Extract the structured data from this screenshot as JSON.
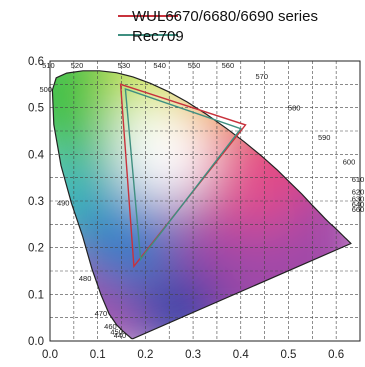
{
  "chart_data": {
    "type": "chromaticity-diagram",
    "xlim": [
      0.0,
      0.65
    ],
    "ylim": [
      0.0,
      0.6
    ],
    "x_ticks": [
      "0.0",
      "0.1",
      "0.2",
      "0.3",
      "0.4",
      "0.5",
      "0.6"
    ],
    "y_ticks": [
      "0.0",
      "0.1",
      "0.2",
      "0.3",
      "0.4",
      "0.5",
      "0.6"
    ],
    "grid": true,
    "legend_placement": "top",
    "series": [
      {
        "name": "WUL6670/6680/6690 series",
        "color": "#c8323c",
        "points": [
          [
            0.148,
            0.55
          ],
          [
            0.41,
            0.463
          ],
          [
            0.176,
            0.16
          ]
        ]
      },
      {
        "name": "Rec709",
        "color": "#3f8f80",
        "points": [
          [
            0.158,
            0.54
          ],
          [
            0.4,
            0.455
          ],
          [
            0.19,
            0.175
          ]
        ]
      }
    ],
    "spectral_locus": [
      [
        0.174,
        0.005
      ],
      [
        0.174,
        0.005
      ],
      [
        0.174,
        0.005
      ],
      [
        0.174,
        0.005
      ],
      [
        0.174,
        0.005
      ],
      [
        0.174,
        0.005
      ],
      [
        0.173,
        0.005
      ],
      [
        0.173,
        0.005
      ],
      [
        0.172,
        0.005
      ],
      [
        0.17,
        0.006
      ],
      [
        0.167,
        0.009
      ],
      [
        0.161,
        0.014
      ],
      [
        0.153,
        0.021
      ],
      [
        0.14,
        0.034
      ],
      [
        0.124,
        0.058
      ],
      [
        0.107,
        0.099
      ],
      [
        0.088,
        0.154
      ],
      [
        0.068,
        0.226
      ],
      [
        0.045,
        0.295
      ],
      [
        0.023,
        0.376
      ],
      [
        0.008,
        0.464
      ],
      [
        0.005,
        0.538
      ],
      [
        0.013,
        0.564
      ],
      [
        0.035,
        0.574
      ],
      [
        0.069,
        0.579
      ],
      [
        0.104,
        0.579
      ],
      [
        0.139,
        0.575
      ],
      [
        0.174,
        0.566
      ],
      [
        0.211,
        0.552
      ],
      [
        0.249,
        0.534
      ],
      [
        0.288,
        0.512
      ],
      [
        0.328,
        0.486
      ],
      [
        0.368,
        0.457
      ],
      [
        0.407,
        0.427
      ],
      [
        0.444,
        0.396
      ],
      [
        0.477,
        0.366
      ],
      [
        0.505,
        0.338
      ],
      [
        0.528,
        0.315
      ],
      [
        0.548,
        0.293
      ],
      [
        0.564,
        0.276
      ],
      [
        0.577,
        0.262
      ],
      [
        0.587,
        0.252
      ],
      [
        0.596,
        0.244
      ],
      [
        0.603,
        0.237
      ],
      [
        0.609,
        0.231
      ],
      [
        0.614,
        0.226
      ],
      [
        0.618,
        0.222
      ],
      [
        0.621,
        0.219
      ],
      [
        0.623,
        0.217
      ],
      [
        0.625,
        0.215
      ],
      [
        0.626,
        0.214
      ],
      [
        0.627,
        0.213
      ],
      [
        0.628,
        0.212
      ],
      [
        0.629,
        0.211
      ],
      [
        0.63,
        0.21
      ],
      [
        0.631,
        0.209
      ]
    ],
    "wavelength_labels": [
      {
        "text": "440",
        "at": [
          0.164,
          0.011
        ],
        "dir": "left"
      },
      {
        "text": "450",
        "at": [
          0.157,
          0.018
        ],
        "dir": "left"
      },
      {
        "text": "460",
        "at": [
          0.144,
          0.03
        ],
        "dir": "left"
      },
      {
        "text": "470",
        "at": [
          0.124,
          0.058
        ],
        "dir": "left"
      },
      {
        "text": "480",
        "at": [
          0.091,
          0.133
        ],
        "dir": "left"
      },
      {
        "text": "490",
        "at": [
          0.045,
          0.295
        ],
        "dir": "left"
      },
      {
        "text": "500",
        "at": [
          0.008,
          0.538
        ],
        "dir": "left"
      },
      {
        "text": "510",
        "at": [
          0.014,
          0.75
        ],
        "dir": "left"
      },
      {
        "text": "520",
        "at": [
          0.074,
          0.834
        ],
        "dir": "left"
      },
      {
        "text": "530",
        "at": [
          0.155,
          0.806
        ],
        "dir": "up"
      },
      {
        "text": "540",
        "at": [
          0.23,
          0.754
        ],
        "dir": "up"
      },
      {
        "text": "550",
        "at": [
          0.302,
          0.692
        ],
        "dir": "up"
      },
      {
        "text": "560",
        "at": [
          0.373,
          0.624
        ],
        "dir": "up"
      },
      {
        "text": "570",
        "at": [
          0.444,
          0.555
        ],
        "dir": "up"
      },
      {
        "text": "580",
        "at": [
          0.512,
          0.487
        ],
        "dir": "up"
      },
      {
        "text": "590",
        "at": [
          0.575,
          0.424
        ],
        "dir": "up"
      },
      {
        "text": "600",
        "at": [
          0.627,
          0.372
        ],
        "dir": "up"
      },
      {
        "text": "610",
        "at": [
          0.666,
          0.334
        ],
        "dir": "up"
      },
      {
        "text": "620",
        "at": [
          0.691,
          0.308
        ],
        "dir": "up"
      },
      {
        "text": "630",
        "at": [
          0.708,
          0.292
        ],
        "dir": "up"
      },
      {
        "text": "640",
        "at": [
          0.719,
          0.281
        ],
        "dir": "up"
      },
      {
        "text": "660",
        "at": [
          0.73,
          0.27
        ],
        "dir": "up"
      }
    ]
  }
}
